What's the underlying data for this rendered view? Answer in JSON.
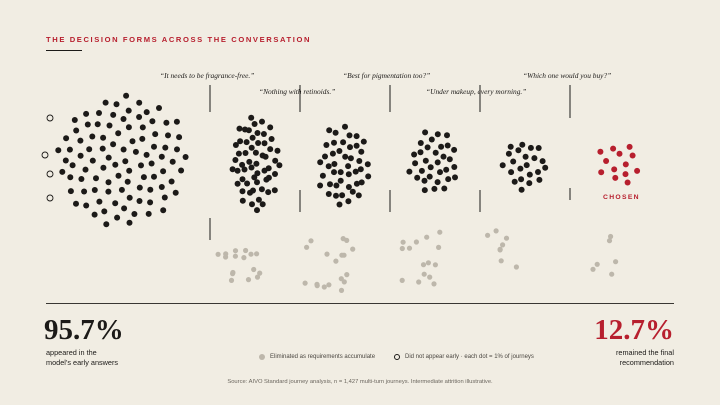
{
  "header": {
    "kicker": "THE DECISION FORMS ACROSS THE CONVERSATION"
  },
  "colors": {
    "background": "#f1ede3",
    "ink": "#1c1a18",
    "accent": "#b71f2e",
    "eliminated": "#bdb7ab"
  },
  "quotes": [
    "“It needs to be fragrance-free.”",
    "“Nothing with retinoids.”",
    "“Best for pigmentation too?”",
    "“Under makeup, every morning.”",
    "“Which one would you buy?”"
  ],
  "chart_data": {
    "type": "scatter",
    "unit": "each dot = 1% of journeys",
    "stages": [
      {
        "stage": 0,
        "remaining": 96,
        "eliminated": 0,
        "did_not_appear_early": 4
      },
      {
        "stage": 1,
        "remaining": 56,
        "eliminated": 16
      },
      {
        "stage": 2,
        "remaining": 44,
        "eliminated": 18
      },
      {
        "stage": 3,
        "remaining": 32,
        "eliminated": 15
      },
      {
        "stage": 4,
        "remaining": 22,
        "eliminated": 8
      },
      {
        "stage": 5,
        "remaining": 13,
        "eliminated": 6,
        "label": "CHOSEN"
      }
    ]
  },
  "stats": {
    "left_value": "95.7%",
    "left_caption_1": "appeared in the",
    "left_caption_2": "model’s early answers",
    "right_value": "12.7%",
    "right_caption_1": "remained the final",
    "right_caption_2": "recommendation"
  },
  "legend": {
    "eliminated": "Eliminated as requirements accumulate",
    "not_early": "Did not appear early · each dot = 1% of journeys"
  },
  "source": "Source: AIVO Standard journey analysis, n = 1,427 multi-turn journeys. Intermediate attrition illustrative."
}
